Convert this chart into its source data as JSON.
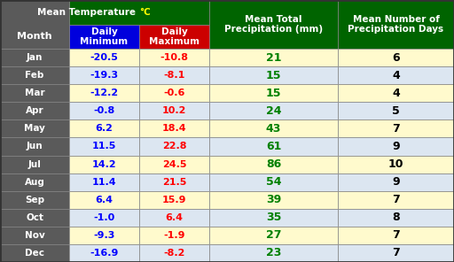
{
  "months": [
    "Jan",
    "Feb",
    "Mar",
    "Apr",
    "May",
    "Jun",
    "Jul",
    "Aug",
    "Sep",
    "Oct",
    "Nov",
    "Dec"
  ],
  "daily_min": [
    -20.5,
    -19.3,
    -12.2,
    -0.8,
    6.2,
    11.5,
    14.2,
    11.4,
    6.4,
    -1.0,
    -9.3,
    -16.9
  ],
  "daily_max": [
    -10.8,
    -8.1,
    -0.6,
    10.2,
    18.4,
    22.8,
    24.5,
    21.5,
    15.9,
    6.4,
    -1.9,
    -8.2
  ],
  "precipitation": [
    21,
    15,
    15,
    24,
    43,
    61,
    86,
    54,
    39,
    35,
    27,
    23
  ],
  "precip_days": [
    6,
    4,
    4,
    5,
    7,
    9,
    10,
    9,
    7,
    8,
    7,
    7
  ],
  "header_bg": "#006400",
  "subheader_min_bg": "#0000DD",
  "subheader_max_bg": "#CC0000",
  "month_col_bg": "#5a5a5a",
  "row_bg_a": "#FFFACD",
  "row_bg_b": "#DCE6F1",
  "min_color": "#0000FF",
  "max_color": "#FF0000",
  "precip_color": "#008000",
  "days_color": "#000000",
  "month_text_color": "#FFFFFF",
  "header_text_color": "#FFFFFF",
  "outer_bg": "#404040",
  "figsize": [
    5.12,
    2.96
  ],
  "dpi": 100
}
